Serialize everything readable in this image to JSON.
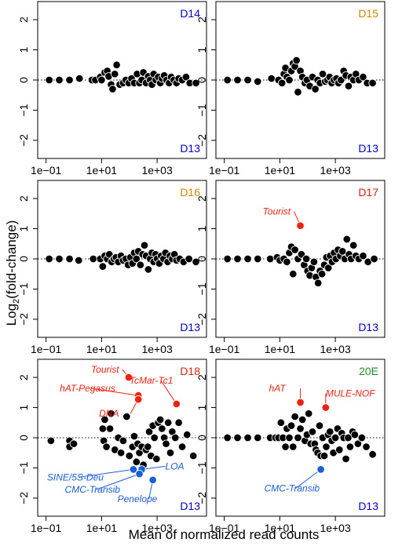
{
  "axes": {
    "xlabel": "Mean of normalized read counts",
    "ylabel_main": "Log",
    "ylabel_sub": "2",
    "ylabel_rest": "(fold-change)",
    "x_ticks": [
      "1e−01",
      "1e+01",
      "1e+03"
    ],
    "y_ticks": [
      "−2",
      "−1",
      "0",
      "1",
      "2"
    ]
  },
  "colors": {
    "treated_d14": "#0000cc",
    "treated_d15": "#cc8800",
    "control": "#0000cc",
    "up": "#ee2211",
    "down": "#1a5fd6",
    "green": "#228b22",
    "points": "#000000"
  },
  "chart_data": [
    {
      "type": "scatter",
      "panel": "D14 vs D13",
      "top_label": "D14",
      "top_color": "#0000cc",
      "bottom_label": "D13",
      "bottom_color": "#0000cc",
      "x_scale": "log10",
      "xlim": [
        0.05,
        60000
      ],
      "ylim": [
        -2.6,
        2.6
      ],
      "points": [
        [
          0.13,
          0.0
        ],
        [
          0.3,
          0.0
        ],
        [
          0.7,
          0.0
        ],
        [
          1.6,
          0.05
        ],
        [
          4.5,
          0.0
        ],
        [
          6,
          0.0
        ],
        [
          9,
          0.1
        ],
        [
          10,
          0.0
        ],
        [
          13,
          0.25
        ],
        [
          16,
          0.3
        ],
        [
          18,
          0.12
        ],
        [
          22,
          -0.15
        ],
        [
          25,
          -0.3
        ],
        [
          30,
          0.2
        ],
        [
          35,
          0.5
        ],
        [
          45,
          -0.15
        ],
        [
          60,
          -0.1
        ],
        [
          75,
          0.0
        ],
        [
          95,
          -0.1
        ],
        [
          120,
          0.05
        ],
        [
          150,
          -0.1
        ],
        [
          190,
          0.2
        ],
        [
          230,
          -0.1
        ],
        [
          280,
          0.0
        ],
        [
          320,
          0.25
        ],
        [
          400,
          -0.1
        ],
        [
          480,
          0.12
        ],
        [
          560,
          0.0
        ],
        [
          650,
          -0.15
        ],
        [
          750,
          0.2
        ],
        [
          900,
          0.0
        ],
        [
          1100,
          0.1
        ],
        [
          1300,
          -0.1
        ],
        [
          1500,
          0.05
        ],
        [
          1800,
          0.15
        ],
        [
          2200,
          0.0
        ],
        [
          2700,
          -0.1
        ],
        [
          3200,
          0.1
        ],
        [
          4000,
          0.0
        ],
        [
          5000,
          -0.1
        ],
        [
          6000,
          0.05
        ],
        [
          8000,
          0.0
        ],
        [
          11000,
          0.1
        ],
        [
          15000,
          -0.1
        ],
        [
          25000,
          -0.1
        ]
      ],
      "highlights": []
    },
    {
      "type": "scatter",
      "panel": "D15 vs D13",
      "top_label": "D15",
      "top_color": "#cc8800",
      "bottom_label": "D13",
      "bottom_color": "#0000cc",
      "x_scale": "log10",
      "xlim": [
        0.05,
        60000
      ],
      "ylim": [
        -2.6,
        2.6
      ],
      "points": [
        [
          0.13,
          0.0
        ],
        [
          0.3,
          0.0
        ],
        [
          0.7,
          0.0
        ],
        [
          1.6,
          -0.05
        ],
        [
          5,
          0.05
        ],
        [
          9,
          0.0
        ],
        [
          12,
          -0.1
        ],
        [
          14,
          0.2
        ],
        [
          16,
          0.4
        ],
        [
          18,
          0.1
        ],
        [
          22,
          0.0
        ],
        [
          26,
          0.3
        ],
        [
          30,
          0.55
        ],
        [
          35,
          0.45
        ],
        [
          40,
          0.65
        ],
        [
          45,
          -0.4
        ],
        [
          55,
          0.3
        ],
        [
          65,
          0.1
        ],
        [
          80,
          -0.1
        ],
        [
          95,
          0.0
        ],
        [
          120,
          -0.2
        ],
        [
          150,
          0.1
        ],
        [
          190,
          -0.3
        ],
        [
          230,
          0.0
        ],
        [
          280,
          -0.1
        ],
        [
          350,
          0.2
        ],
        [
          430,
          -0.05
        ],
        [
          520,
          0.0
        ],
        [
          620,
          0.1
        ],
        [
          740,
          -0.1
        ],
        [
          900,
          0.0
        ],
        [
          1100,
          0.05
        ],
        [
          1300,
          -0.1
        ],
        [
          1600,
          0.0
        ],
        [
          2000,
          0.3
        ],
        [
          2400,
          0.15
        ],
        [
          3000,
          -0.2
        ],
        [
          3600,
          0.1
        ],
        [
          4500,
          0.0
        ],
        [
          5500,
          0.2
        ],
        [
          7000,
          0.0
        ],
        [
          10000,
          0.1
        ],
        [
          14000,
          -0.1
        ],
        [
          22000,
          -0.1
        ]
      ],
      "highlights": []
    },
    {
      "type": "scatter",
      "panel": "D16 vs D13",
      "top_label": "D16",
      "top_color": "#cc8800",
      "bottom_label": "D13",
      "bottom_color": "#0000cc",
      "x_scale": "log10",
      "xlim": [
        0.05,
        60000
      ],
      "ylim": [
        -2.6,
        2.6
      ],
      "points": [
        [
          0.13,
          0.0
        ],
        [
          0.3,
          0.0
        ],
        [
          0.7,
          0.0
        ],
        [
          1.5,
          -0.05
        ],
        [
          5,
          0.0
        ],
        [
          9,
          0.0
        ],
        [
          11,
          -0.25
        ],
        [
          13,
          0.1
        ],
        [
          16,
          0.0
        ],
        [
          19,
          0.15
        ],
        [
          23,
          -0.1
        ],
        [
          28,
          0.0
        ],
        [
          33,
          0.05
        ],
        [
          40,
          -0.1
        ],
        [
          50,
          0.1
        ],
        [
          60,
          -0.05
        ],
        [
          75,
          0.0
        ],
        [
          90,
          -0.2
        ],
        [
          110,
          0.05
        ],
        [
          130,
          -0.15
        ],
        [
          150,
          0.2
        ],
        [
          180,
          0.0
        ],
        [
          210,
          0.25
        ],
        [
          250,
          -0.2
        ],
        [
          300,
          0.15
        ],
        [
          350,
          0.45
        ],
        [
          400,
          0.1
        ],
        [
          480,
          -0.35
        ],
        [
          560,
          0.0
        ],
        [
          650,
          0.2
        ],
        [
          750,
          -0.1
        ],
        [
          880,
          0.15
        ],
        [
          1000,
          0.0
        ],
        [
          1200,
          -0.15
        ],
        [
          1400,
          0.1
        ],
        [
          1700,
          0.0
        ],
        [
          2000,
          0.2
        ],
        [
          2400,
          -0.1
        ],
        [
          2900,
          0.1
        ],
        [
          3500,
          0.0
        ],
        [
          4200,
          0.15
        ],
        [
          5000,
          -0.05
        ],
        [
          6500,
          0.0
        ],
        [
          9000,
          -0.1
        ],
        [
          14000,
          0.0
        ],
        [
          25000,
          -0.1
        ]
      ],
      "highlights": []
    },
    {
      "type": "scatter",
      "panel": "D17 vs D13",
      "top_label": "D17",
      "top_color": "#dd2211",
      "bottom_label": "D13",
      "bottom_color": "#0000cc",
      "x_scale": "log10",
      "xlim": [
        0.05,
        60000
      ],
      "ylim": [
        -2.6,
        2.6
      ],
      "points": [
        [
          0.13,
          0.0
        ],
        [
          0.3,
          0.0
        ],
        [
          0.7,
          0.0
        ],
        [
          1.6,
          0.0
        ],
        [
          4.5,
          0.0
        ],
        [
          8,
          0.05
        ],
        [
          10,
          -0.05
        ],
        [
          14,
          0.0
        ],
        [
          18,
          -0.1
        ],
        [
          22,
          0.2
        ],
        [
          26,
          0.4
        ],
        [
          30,
          -0.5
        ],
        [
          35,
          0.3
        ],
        [
          45,
          0.0
        ],
        [
          60,
          0.15
        ],
        [
          75,
          -0.2
        ],
        [
          90,
          0.0
        ],
        [
          100,
          -0.4
        ],
        [
          120,
          -0.55
        ],
        [
          140,
          -0.3
        ],
        [
          170,
          -0.1
        ],
        [
          200,
          -0.6
        ],
        [
          240,
          -0.8
        ],
        [
          280,
          -0.4
        ],
        [
          330,
          -0.5
        ],
        [
          400,
          -0.2
        ],
        [
          480,
          0.05
        ],
        [
          560,
          -0.3
        ],
        [
          650,
          0.1
        ],
        [
          760,
          -0.1
        ],
        [
          900,
          0.2
        ],
        [
          1050,
          0.0
        ],
        [
          1250,
          0.3
        ],
        [
          1500,
          0.1
        ],
        [
          1800,
          0.25
        ],
        [
          2200,
          0.0
        ],
        [
          2600,
          0.65
        ],
        [
          3100,
          0.15
        ],
        [
          3700,
          0.0
        ],
        [
          4500,
          0.45
        ],
        [
          5500,
          0.1
        ],
        [
          7000,
          0.0
        ],
        [
          10000,
          0.1
        ],
        [
          15000,
          -0.1
        ],
        [
          25000,
          0.0
        ]
      ],
      "highlights": [
        {
          "label": "Tourist",
          "x": 55,
          "y": 1.1,
          "color": "#ee2211",
          "label_dx": -48,
          "label_dy": -14,
          "anchor": "start"
        }
      ]
    },
    {
      "type": "scatter",
      "panel": "D18 vs D13",
      "top_label": "D18",
      "top_color": "#dd2211",
      "bottom_label": "D13",
      "bottom_color": "#0000cc",
      "x_scale": "log10",
      "xlim": [
        0.05,
        60000
      ],
      "ylim": [
        -2.6,
        2.6
      ],
      "points": [
        [
          0.15,
          -0.1
        ],
        [
          0.7,
          -0.1
        ],
        [
          0.7,
          -0.3
        ],
        [
          1.0,
          -0.2
        ],
        [
          11,
          0.3
        ],
        [
          12,
          -0.1
        ],
        [
          13,
          0.6
        ],
        [
          15,
          -0.3
        ],
        [
          20,
          0.3
        ],
        [
          22,
          0.8
        ],
        [
          30,
          -0.4
        ],
        [
          40,
          0.0
        ],
        [
          50,
          -0.5
        ],
        [
          60,
          -0.1
        ],
        [
          80,
          0.7
        ],
        [
          100,
          -0.6
        ],
        [
          130,
          -0.3
        ],
        [
          150,
          0.05
        ],
        [
          180,
          -0.8
        ],
        [
          200,
          -0.2
        ],
        [
          230,
          -0.5
        ],
        [
          280,
          -0.3
        ],
        [
          320,
          -0.9
        ],
        [
          400,
          -0.4
        ],
        [
          460,
          -0.3
        ],
        [
          520,
          0.2
        ],
        [
          600,
          -0.6
        ],
        [
          700,
          0.4
        ],
        [
          800,
          0.0
        ],
        [
          950,
          -0.7
        ],
        [
          1100,
          0.5
        ],
        [
          1300,
          0.6
        ],
        [
          1500,
          0.3
        ],
        [
          1800,
          0.0
        ],
        [
          2100,
          -0.2
        ],
        [
          2500,
          0.5
        ],
        [
          3000,
          -0.5
        ],
        [
          3500,
          0.2
        ],
        [
          4500,
          0.0
        ],
        [
          6000,
          0.5
        ],
        [
          8000,
          -0.3
        ],
        [
          12000,
          0.1
        ],
        [
          20000,
          -0.6
        ]
      ],
      "highlights": [
        {
          "label": "Tourist",
          "x": 95,
          "y": 2.0,
          "color": "#ee2211",
          "label_dx": -48,
          "label_dy": -6,
          "anchor": "start"
        },
        {
          "label": "hAT-Pegasus",
          "x": 210,
          "y": 1.4,
          "color": "#ee2211",
          "label_dx": -100,
          "label_dy": -5,
          "anchor": "start"
        },
        {
          "label": "DNA",
          "x": 210,
          "y": 1.27,
          "color": "#ee2211",
          "label_dx": -50,
          "label_dy": 22,
          "anchor": "start"
        },
        {
          "label": "TcMar-Tc1",
          "x": 5000,
          "y": 1.12,
          "color": "#ee2211",
          "label_dx": -60,
          "label_dy": -26,
          "anchor": "start"
        },
        {
          "label": "SINE/5S-Deu",
          "x": 140,
          "y": -1.05,
          "color": "#1a5fd6",
          "label_dx": -110,
          "label_dy": 14,
          "anchor": "start"
        },
        {
          "label": "LOA",
          "x": 280,
          "y": -1.05,
          "color": "#1a5fd6",
          "label_dx": 30,
          "label_dy": 0,
          "anchor": "start"
        },
        {
          "label": "CMC-Transib",
          "x": 230,
          "y": -1.2,
          "color": "#1a5fd6",
          "label_dx": -95,
          "label_dy": 24,
          "anchor": "start"
        },
        {
          "label": "Penelope",
          "x": 700,
          "y": -1.4,
          "color": "#1a5fd6",
          "label_dx": -45,
          "label_dy": 28,
          "anchor": "start"
        }
      ]
    },
    {
      "type": "scatter",
      "panel": "20E vs D13",
      "top_label": "20E",
      "top_color": "#228b22",
      "bottom_label": "D13",
      "bottom_color": "#0000cc",
      "x_scale": "log10",
      "xlim": [
        0.05,
        60000
      ],
      "ylim": [
        -2.6,
        2.6
      ],
      "points": [
        [
          0.13,
          0.0
        ],
        [
          0.3,
          0.0
        ],
        [
          0.7,
          0.0
        ],
        [
          1.6,
          0.0
        ],
        [
          4.5,
          0.0
        ],
        [
          7,
          0.0
        ],
        [
          9,
          0.0
        ],
        [
          11,
          0.5
        ],
        [
          13,
          0.0
        ],
        [
          16,
          -0.3
        ],
        [
          18,
          0.3
        ],
        [
          22,
          0.0
        ],
        [
          26,
          0.4
        ],
        [
          30,
          -0.3
        ],
        [
          35,
          0.7
        ],
        [
          45,
          0.0
        ],
        [
          55,
          0.3
        ],
        [
          65,
          0.6
        ],
        [
          80,
          -0.1
        ],
        [
          95,
          0.1
        ],
        [
          110,
          0.8
        ],
        [
          130,
          -0.2
        ],
        [
          150,
          0.2
        ],
        [
          180,
          -0.2
        ],
        [
          200,
          -0.4
        ],
        [
          230,
          -0.5
        ],
        [
          270,
          0.4
        ],
        [
          300,
          -0.6
        ],
        [
          350,
          0.0
        ],
        [
          400,
          -0.6
        ],
        [
          470,
          -0.3
        ],
        [
          550,
          0.1
        ],
        [
          640,
          0.2
        ],
        [
          740,
          -0.1
        ],
        [
          850,
          -0.5
        ],
        [
          1000,
          0.0
        ],
        [
          1200,
          0.3
        ],
        [
          1400,
          -0.4
        ],
        [
          1700,
          0.15
        ],
        [
          2000,
          0.0
        ],
        [
          2400,
          -0.7
        ],
        [
          2900,
          0.0
        ],
        [
          3400,
          -0.3
        ],
        [
          4200,
          0.2
        ],
        [
          5000,
          0.1
        ],
        [
          6500,
          -0.2
        ],
        [
          9000,
          0.0
        ],
        [
          13000,
          -0.3
        ],
        [
          22000,
          -0.55
        ]
      ],
      "highlights": [
        {
          "label": "hAT",
          "x": 55,
          "y": 1.17,
          "color": "#ee2211",
          "label_dx": -40,
          "label_dy": -14,
          "anchor": "start"
        },
        {
          "label": "MULE-NOF",
          "x": 450,
          "y": 1.0,
          "color": "#ee2211",
          "label_dx": 0,
          "label_dy": -14,
          "anchor": "start"
        },
        {
          "label": "CMC-Transib",
          "x": 300,
          "y": -1.05,
          "color": "#1a5fd6",
          "label_dx": -72,
          "label_dy": 28,
          "anchor": "start"
        }
      ]
    }
  ]
}
